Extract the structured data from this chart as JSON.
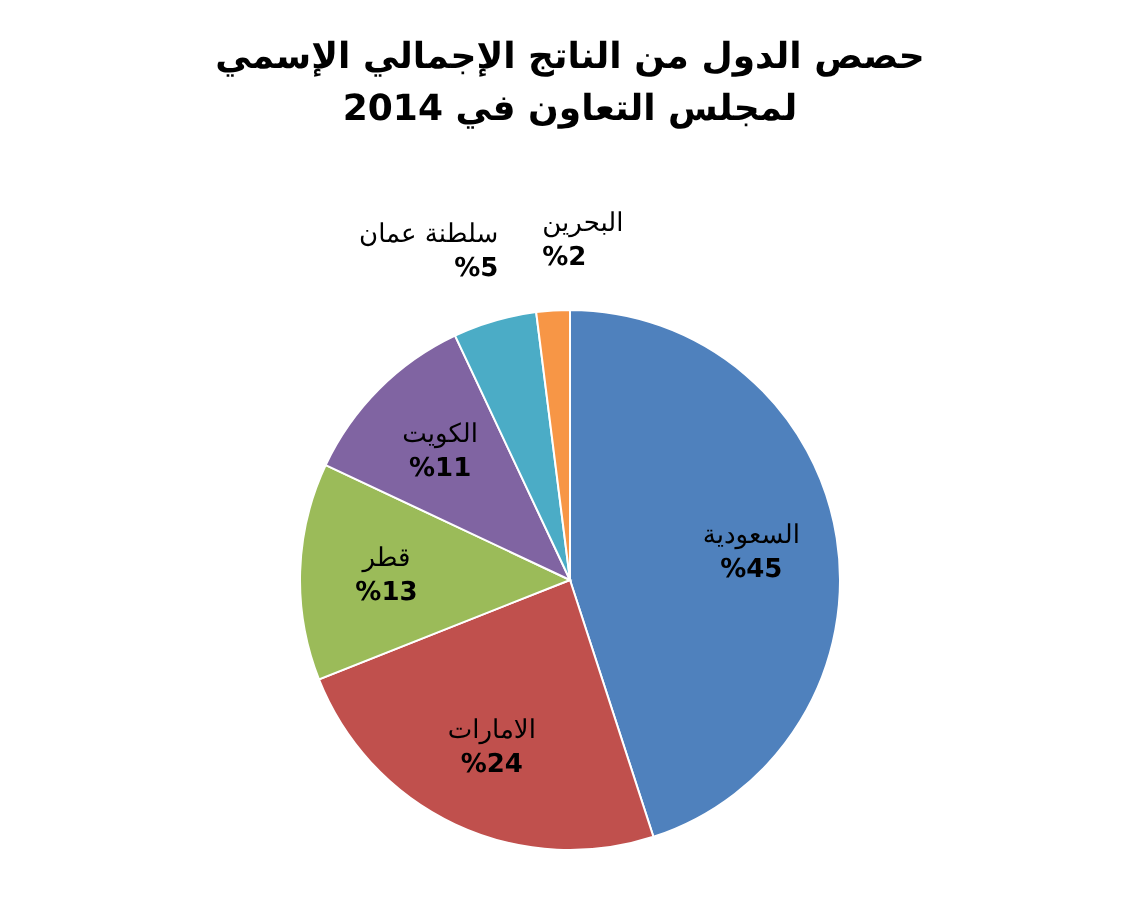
{
  "chart_data": {
    "type": "pie",
    "title": "حصص الدول من الناتج الإجمالي الإسمي لمجلس التعاون في 2014",
    "categories": [
      "السعودية",
      "الامارات",
      "قطر",
      "الكويت",
      "سلطنة عمان",
      "البحرين"
    ],
    "values": [
      45,
      24,
      13,
      11,
      5,
      2
    ],
    "value_labels": [
      "%45",
      "%24",
      "%13",
      "%11",
      "%5",
      "%2"
    ],
    "colors": [
      "#4f81bd",
      "#c0504d",
      "#9bbb59",
      "#8064a2",
      "#4bacc6",
      "#f79646"
    ]
  }
}
